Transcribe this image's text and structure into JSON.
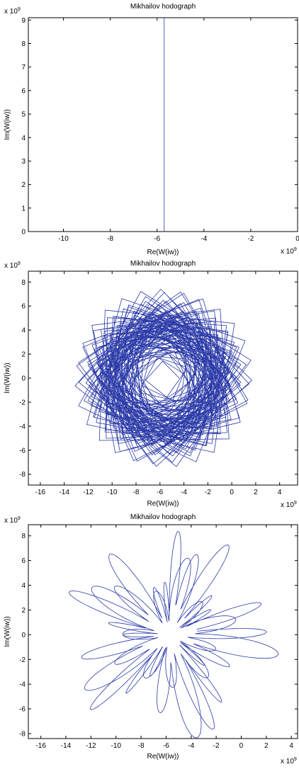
{
  "charts": [
    {
      "title": "Mikhailov hodograph",
      "xlabel": "Re(W(iw))",
      "ylabel": "Im(W(iw))",
      "x_exp_base": "x 10",
      "x_exp": "9",
      "y_exp_base": "x 10",
      "y_exp": "9"
    },
    {
      "title": "Mikhailov hodograph",
      "xlabel": "Re(W(iw))",
      "ylabel": "Im(W(iw))",
      "x_exp_base": "x 10",
      "x_exp": "9",
      "y_exp_base": "x 10",
      "y_exp": "9"
    },
    {
      "title": "Mikhailov hodograph",
      "xlabel": "Re(W(iw))",
      "ylabel": "Im(W(iw))",
      "x_exp_base": "x 10",
      "x_exp": "9",
      "y_exp_base": "x 10",
      "y_exp": "9"
    }
  ],
  "chart_data": [
    {
      "type": "line",
      "title": "Mikhailov hodograph",
      "xlabel": "Re(W(iw))",
      "ylabel": "Im(W(iw))",
      "xlim": [
        -11.5,
        0
      ],
      "ylim": [
        0,
        9.1
      ],
      "xticks": [
        -10,
        -8,
        -6,
        -4,
        -2,
        0
      ],
      "yticks": [
        0,
        1,
        2,
        3,
        4,
        5,
        6,
        7,
        8,
        9
      ],
      "scale_exponent": 9,
      "series_color": "#2b3aa8",
      "curve": {
        "kind": "vertical",
        "x": -5.7,
        "y_start": 0,
        "y_end": 9.1
      }
    },
    {
      "type": "line",
      "title": "Mikhailov hodograph",
      "xlabel": "Re(W(iw))",
      "ylabel": "Im(W(iw))",
      "xlim": [
        -17,
        5.5
      ],
      "ylim": [
        -8.9,
        8.9
      ],
      "xticks": [
        -16,
        -14,
        -12,
        -10,
        -8,
        -6,
        -4,
        -2,
        0,
        2,
        4
      ],
      "yticks": [
        -8,
        -6,
        -4,
        -2,
        0,
        2,
        4,
        6,
        8
      ],
      "scale_exponent": 9,
      "series_color": "#2b3aa8",
      "curve": {
        "kind": "rotating-star",
        "center_x": -5.7,
        "center_y": 0,
        "radius": 8.7,
        "polygon_sides": 4,
        "points": 420,
        "turns": 15.16,
        "growth": 0.85
      }
    },
    {
      "type": "line",
      "title": "Mikhailov hodograph",
      "xlabel": "Re(W(iw))",
      "ylabel": "Im(W(iw))",
      "xlim": [
        -17,
        4.5
      ],
      "ylim": [
        -8.4,
        8.9
      ],
      "xticks": [
        -16,
        -14,
        -12,
        -10,
        -8,
        -6,
        -4,
        -2,
        0,
        2,
        4
      ],
      "yticks": [
        -8,
        -6,
        -4,
        -2,
        0,
        2,
        4,
        6,
        8
      ],
      "scale_exponent": 9,
      "series_color": "#2b3aa8",
      "curve": {
        "kind": "five-arm-star",
        "center_x": -5.7,
        "center_y": 0,
        "radius": 8.8,
        "arms": 5,
        "points": 1200,
        "inner_ratio": 0.42
      }
    }
  ]
}
